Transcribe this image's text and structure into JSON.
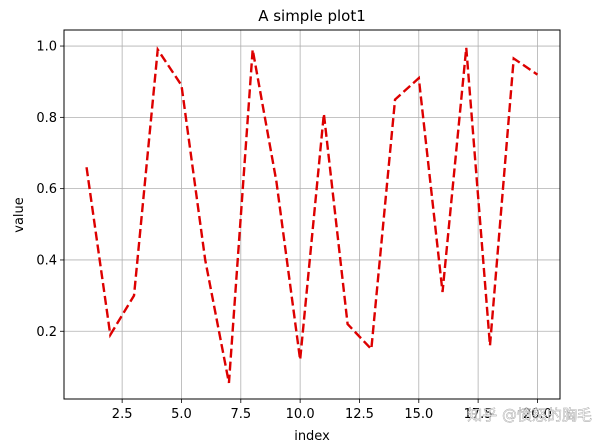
{
  "chart_data": {
    "type": "line",
    "title": "A simple plot1",
    "xlabel": "index",
    "ylabel": "value",
    "xlim": [
      0.05,
      20.95
    ],
    "ylim": [
      0.01,
      1.045
    ],
    "grid": true,
    "x_ticks": [
      2.5,
      5.0,
      7.5,
      10.0,
      12.5,
      15.0,
      17.5,
      20.0
    ],
    "x_tick_labels": [
      "2.5",
      "5.0",
      "7.5",
      "10.0",
      "12.5",
      "15.0",
      "17.5",
      "20.0"
    ],
    "y_ticks": [
      0.2,
      0.4,
      0.6,
      0.8,
      1.0
    ],
    "y_tick_labels": [
      "0.2",
      "0.4",
      "0.6",
      "0.8",
      "1.0"
    ],
    "series": [
      {
        "line_style": "dashed",
        "color": "#dd0000",
        "x": [
          1,
          2,
          3,
          4,
          5,
          6,
          7,
          8,
          9,
          10,
          11,
          12,
          13,
          14,
          15,
          16,
          17,
          18,
          19,
          20
        ],
        "y": [
          0.66,
          0.19,
          0.3,
          0.99,
          0.89,
          0.4,
          0.055,
          0.99,
          0.62,
          0.12,
          0.81,
          0.22,
          0.15,
          0.85,
          0.91,
          0.31,
          0.995,
          0.16,
          0.965,
          0.92
        ]
      }
    ]
  },
  "watermark": {
    "text": "知乎 @愤怒的胸毛"
  }
}
